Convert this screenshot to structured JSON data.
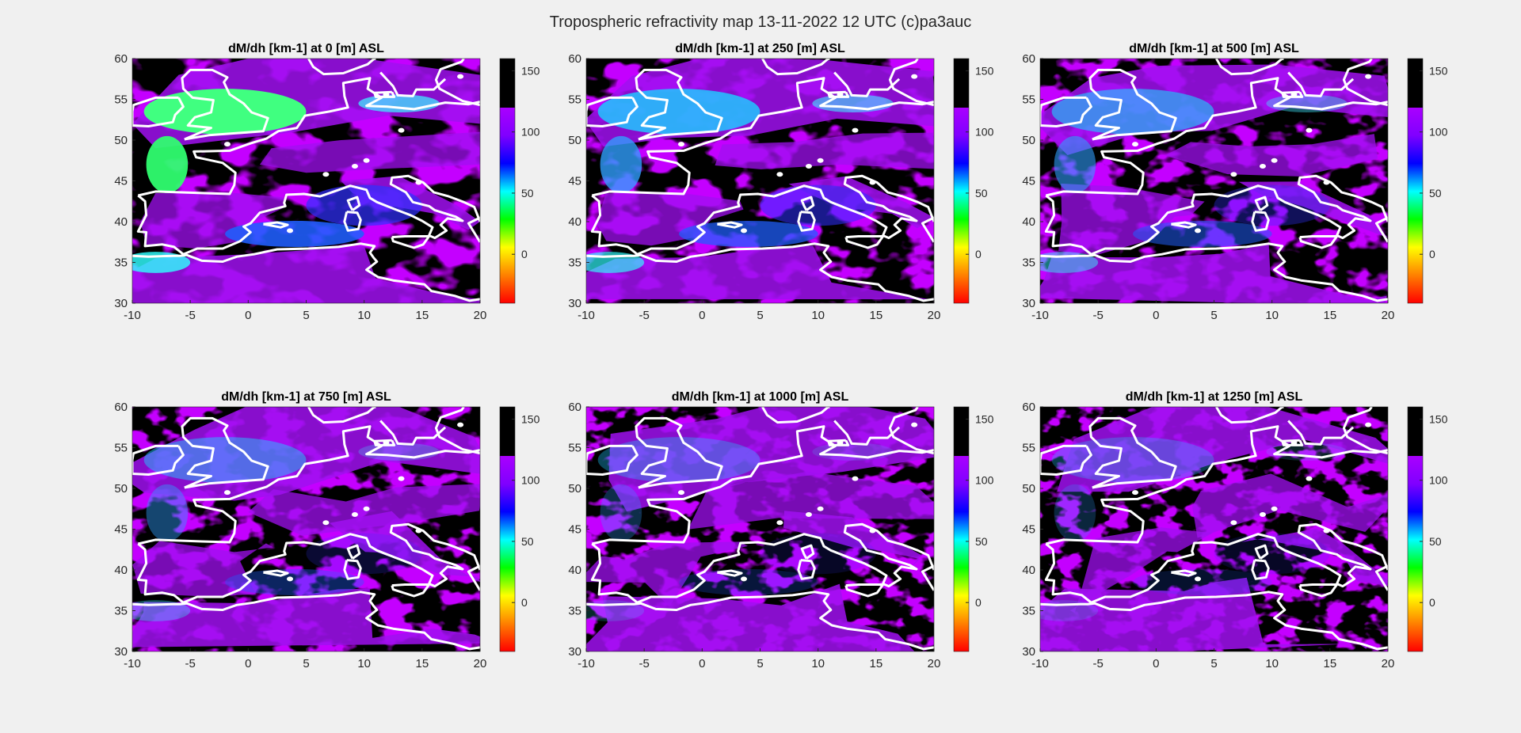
{
  "figure": {
    "suptitle": "Tropospheric refractivity map 13-11-2022 12 UTC (c)pa3auc"
  },
  "chart_data": {
    "type": "heatmap",
    "xlim": [
      -10,
      20
    ],
    "ylim": [
      30,
      60
    ],
    "xticks": [
      -10,
      -5,
      0,
      5,
      10,
      15,
      20
    ],
    "yticks": [
      30,
      35,
      40,
      45,
      50,
      55,
      60
    ],
    "colorbar": {
      "clim": [
        -40,
        160
      ],
      "ticks": [
        0,
        50,
        100,
        150
      ],
      "colors": [
        "#ff0000",
        "#ff8000",
        "#ffff00",
        "#00ff00",
        "#00ffff",
        "#0000ff",
        "#8000ff",
        "#aa00ff",
        "#000000"
      ],
      "black_above": 120
    },
    "grid": false,
    "legend": "none",
    "coastline_color": "#ffffff",
    "panels": [
      {
        "title": "dM/dh [km-1] at 0    [m] ASL",
        "altitude_m": 0
      },
      {
        "title": "dM/dh [km-1] at 250  [m] ASL",
        "altitude_m": 250
      },
      {
        "title": "dM/dh [km-1] at 500  [m] ASL",
        "altitude_m": 500
      },
      {
        "title": "dM/dh [km-1] at 750  [m] ASL",
        "altitude_m": 750
      },
      {
        "title": "dM/dh [km-1] at 1000 [m] ASL",
        "altitude_m": 1000
      },
      {
        "title": "dM/dh [km-1] at 1250 [m] ASL",
        "altitude_m": 1250
      }
    ]
  }
}
